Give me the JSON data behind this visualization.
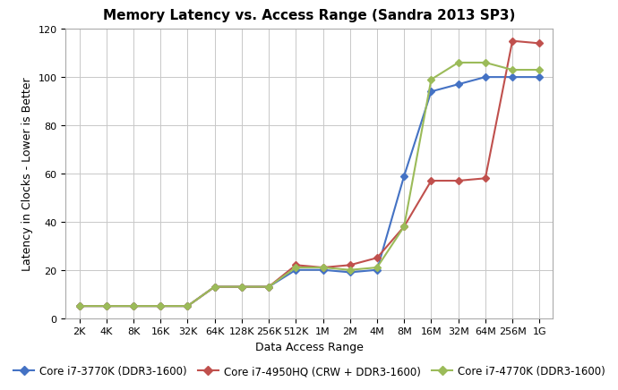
{
  "title": "Memory Latency vs. Access Range (Sandra 2013 SP3)",
  "xlabel": "Data Access Range",
  "ylabel": "Latency in Clocks - Lower is Better",
  "x_labels": [
    "2K",
    "4K",
    "8K",
    "16K",
    "32K",
    "64K",
    "128K",
    "256K",
    "512K",
    "1M",
    "2M",
    "4M",
    "8M",
    "16M",
    "32M",
    "64M",
    "256M",
    "1G"
  ],
  "series": [
    {
      "label": "Core i7-3770K (DDR3-1600)",
      "color": "#4472C4",
      "marker": "D",
      "values": [
        5,
        5,
        5,
        5,
        5,
        13,
        13,
        13,
        20,
        20,
        19,
        20,
        59,
        94,
        97,
        100,
        100,
        100
      ]
    },
    {
      "label": "Core i7-4950HQ (CRW + DDR3-1600)",
      "color": "#C0504D",
      "marker": "D",
      "values": [
        5,
        5,
        5,
        5,
        5,
        13,
        13,
        13,
        22,
        21,
        22,
        25,
        38,
        57,
        57,
        58,
        115,
        114
      ]
    },
    {
      "label": "Core i7-4770K (DDR3-1600)",
      "color": "#9BBB59",
      "marker": "D",
      "values": [
        5,
        5,
        5,
        5,
        5,
        13,
        13,
        13,
        21,
        21,
        20,
        21,
        38,
        99,
        106,
        106,
        103,
        103
      ]
    }
  ],
  "ylim": [
    0,
    120
  ],
  "yticks": [
    0,
    20,
    40,
    60,
    80,
    100,
    120
  ],
  "background_color": "#FFFFFF",
  "grid_color": "#C8C8C8",
  "title_fontsize": 11,
  "axis_label_fontsize": 9,
  "tick_fontsize": 8,
  "legend_fontsize": 8.5
}
